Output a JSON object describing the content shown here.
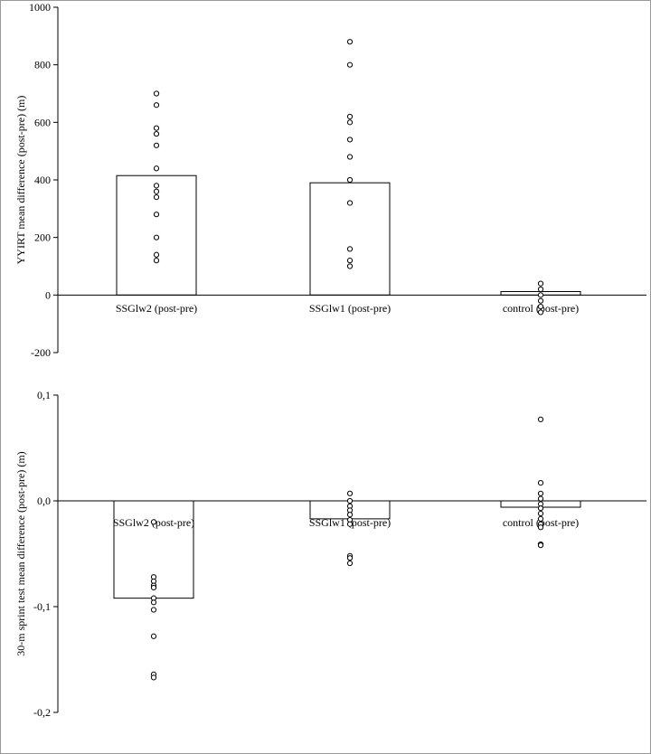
{
  "chart_data": [
    {
      "type": "bar",
      "ylabel": "YYIRT mean difference (post-pre) (m)",
      "ylim": [
        -200,
        1000
      ],
      "yticks": [
        -200,
        0,
        200,
        400,
        600,
        800,
        1000
      ],
      "ytick_labels": [
        "-200",
        "0",
        "200",
        "400",
        "600",
        "800",
        "1000"
      ],
      "categories": [
        "SSGlw2 (post-pre)",
        "SSGlw1 (post-pre)",
        "control (post-pre)"
      ],
      "values": [
        415,
        390,
        12
      ],
      "points": [
        [
          700,
          660,
          580,
          560,
          520,
          440,
          380,
          360,
          340,
          280,
          200,
          140,
          120
        ],
        [
          880,
          800,
          620,
          600,
          540,
          480,
          400,
          320,
          160,
          120,
          100
        ],
        [
          40,
          20,
          0,
          -20,
          -40,
          -60
        ]
      ],
      "grid": false
    },
    {
      "type": "bar",
      "ylabel": "30-m sprint test mean difference (post-pre) (m)",
      "ylim": [
        -0.2,
        0.1
      ],
      "yticks": [
        -0.2,
        -0.1,
        0.0,
        0.1
      ],
      "ytick_labels": [
        "-0,2",
        "-0,1",
        "0,0",
        "0,1"
      ],
      "categories": [
        "SSGlw2 (post-pre)",
        "SSGlw1 (post-pre)",
        "control (post-pre)"
      ],
      "values": [
        -0.092,
        -0.017,
        -0.006
      ],
      "points": [
        [
          -0.02,
          -0.072,
          -0.076,
          -0.08,
          -0.082,
          -0.092,
          -0.096,
          -0.103,
          -0.128,
          -0.164,
          -0.167
        ],
        [
          0.007,
          0.0,
          -0.005,
          -0.009,
          -0.013,
          -0.018,
          -0.022,
          -0.052,
          -0.054,
          -0.059
        ],
        [
          0.077,
          0.017,
          0.007,
          0.002,
          -0.003,
          -0.007,
          -0.012,
          -0.017,
          -0.022,
          -0.025,
          -0.041,
          -0.042
        ]
      ],
      "grid": false
    }
  ]
}
